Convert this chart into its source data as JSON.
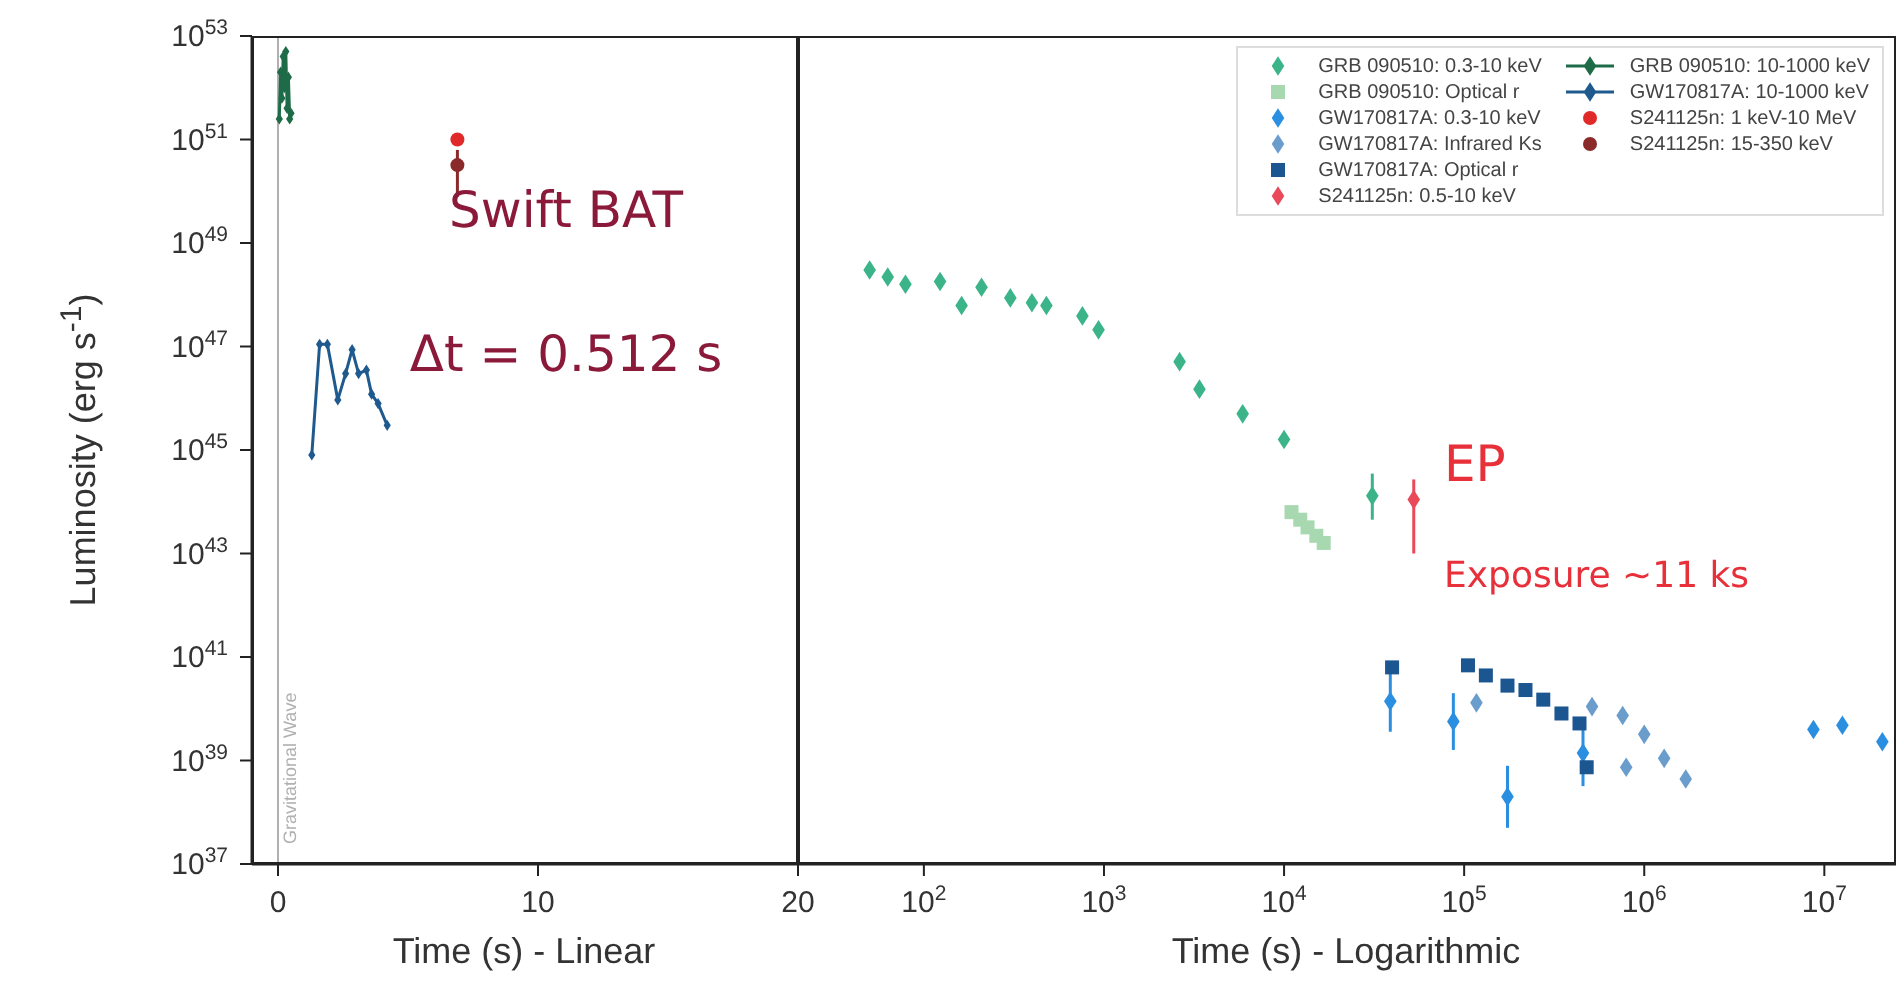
{
  "chart_data": [
    {
      "type": "scatter",
      "ylabel": "Luminosity (erg s$^{-1}$)",
      "xlabel": "Time (s) - Linear",
      "log": "y",
      "xlim": [
        -1,
        20
      ],
      "xticks": [
        0,
        10,
        20
      ],
      "ylim": [
        1e+37,
        1e+53
      ],
      "yticks": [
        {
          "value": 1e+37,
          "label": "10$^{37}$"
        },
        {
          "value": 1e+39,
          "label": "10$^{39}$"
        },
        {
          "value": 1e+41,
          "label": "10$^{41}$"
        },
        {
          "value": 1e+43,
          "label": "10$^{43}$"
        },
        {
          "value": 1e+45,
          "label": "10$^{45}$"
        },
        {
          "value": 1e+47,
          "label": "10$^{47}$"
        },
        {
          "value": 1e+49,
          "label": "10$^{49}$"
        },
        {
          "value": 1e+51,
          "label": "10$^{51}$"
        },
        {
          "value": 1e+53,
          "label": "10$^{53}$"
        }
      ],
      "ref_lines": [
        {
          "axis": "x",
          "value": 0,
          "label": "Gravitational Wave",
          "color": "#b0b0b0"
        }
      ],
      "annotations": [
        "Swift BAT",
        "Δt = 0.512 s"
      ],
      "legend": "right",
      "series": [
        {
          "name": "GRB 090510: 10-1000 keV",
          "type": "line",
          "marker": "diamond",
          "color": "#1e6b48",
          "x": [
            0.05,
            0.1,
            0.15,
            0.2,
            0.25,
            0.3,
            0.35,
            0.4,
            0.45,
            0.5
          ],
          "values": [
            2.5e+51,
            2e+52,
            6.3e+51,
            4e+52,
            1e+52,
            5e+52,
            4e+51,
            1.6e+52,
            2.5e+51,
            3.2e+51
          ]
        },
        {
          "name": "GW170817A: 10-1000 keV",
          "type": "line",
          "marker": "diamond",
          "color": "#1f5a8f",
          "x": [
            1.3,
            1.6,
            1.9,
            2.3,
            2.6,
            2.85,
            3.1,
            3.4,
            3.6,
            3.85,
            4.2
          ],
          "values": [
            8e+44,
            1.1e+47,
            1.1e+47,
            9.3e+45,
            3e+46,
            8.7e+46,
            3e+46,
            3.5e+46,
            1.2e+46,
            7.9e+45,
            3e+45
          ]
        },
        {
          "name": "S241125n: 1 keV-10 MeV",
          "marker": "circle",
          "color": "#e02a2a",
          "x": [
            6.9
          ],
          "values": [
            1e+51
          ]
        },
        {
          "name": "S241125n: 15-350 keV",
          "marker": "circle",
          "color": "#8a2a2a",
          "x": [
            6.9
          ],
          "values": [
            3.2e+50
          ],
          "errors": [
            [
              7.9e+49,
              6.3e+50
            ]
          ]
        }
      ]
    },
    {
      "type": "scatter",
      "xlabel": "Time (s) - Logarithmic",
      "log": "xy",
      "tick_labels": "x",
      "xlim": [
        20,
        25000000.0
      ],
      "ylim": [
        1e+37,
        1e+53
      ],
      "xticks": [
        {
          "value": 100,
          "label": "10$^{2}$"
        },
        {
          "value": 1000,
          "label": "10$^{3}$"
        },
        {
          "value": 10000,
          "label": "10$^{4}$"
        },
        {
          "value": 100000,
          "label": "10$^{5}$"
        },
        {
          "value": 1000000,
          "label": "10$^{6}$"
        },
        {
          "value": 10000000,
          "label": "10$^{7}$"
        }
      ],
      "legend": "top right",
      "annotations": [
        "EP",
        "Exposure ~11 ks"
      ],
      "series": [
        {
          "name": "GRB 090510: 0.3-10 keV",
          "marker": "diamond",
          "color": "#3cb48a",
          "x": [
            50,
            63,
            79,
            123,
            162,
            209,
            302,
            398,
            479,
            759,
            933,
            2630,
            3390,
            5890,
            10000,
            30900
          ],
          "values": [
            3e+48,
            2.2e+48,
            1.6e+48,
            1.8e+48,
            6.2e+47,
            1.4e+48,
            8.7e+47,
            7e+47,
            6.2e+47,
            3.9e+47,
            2.1e+47,
            5.1e+46,
            1.5e+46,
            5e+45,
            1.6e+45,
            1.3e+44
          ],
          "errors": [
            null,
            null,
            null,
            null,
            null,
            null,
            null,
            null,
            null,
            null,
            null,
            null,
            null,
            null,
            null,
            [
              4.5e+43,
              3.5e+44
            ]
          ]
        },
        {
          "name": "GRB 090510: Optical r",
          "marker": "square",
          "color": "#a8d8b0",
          "x": [
            11000,
            12300,
            13500,
            15100,
            16600
          ],
          "values": [
            6.3e+43,
            4.5e+43,
            3.2e+43,
            2.2e+43,
            1.6e+43
          ]
        },
        {
          "name": "GW170817A: 0.3-10 keV",
          "marker": "diamond",
          "color": "#2a8fe0",
          "x": [
            38900,
            87100,
            174000,
            457000,
            8700000.0,
            12600000.0,
            21000000.0
          ],
          "values": [
            1.4e+40,
            5.7e+39,
            2e+38,
            1.4e+39,
            3.98e+39,
            4.8e+39,
            2.3e+39
          ],
          "errors": [
            [
              3.6e+39,
              5.8e+40
            ],
            [
              1.6e+39,
              2e+40
            ],
            [
              5e+37,
              7.9e+38
            ],
            [
              3.2e+38,
              6.3e+39
            ],
            null,
            null,
            null
          ]
        },
        {
          "name": "GW170817A: Infrared Ks",
          "marker": "diamond",
          "color": "#6a9dcc",
          "x": [
            117000,
            513000,
            759000,
            794000,
            1000000.0,
            1290000.0,
            1700000.0
          ],
          "values": [
            1.3e+40,
            1.1e+40,
            7.4e+39,
            7.4e+38,
            3.2e+39,
            1.1e+39,
            4.4e+38
          ]
        },
        {
          "name": "GW170817A: Optical r",
          "marker": "square",
          "color": "#1b5690",
          "x": [
            39800,
            105000,
            132000,
            174000,
            219000,
            275000,
            347000,
            437000,
            479000
          ],
          "values": [
            6.3e+40,
            6.9e+40,
            4.4e+40,
            2.8e+40,
            2.3e+40,
            1.5e+40,
            8.1e+39,
            5.2e+39,
            7.4e+38
          ]
        },
        {
          "name": "S241125n: 0.5-10 keV",
          "marker": "diamond",
          "color": "#e84a5a",
          "x": [
            52500
          ],
          "values": [
            1.1e+44
          ],
          "errors": [
            [
              1e+43,
              2.7e+44
            ]
          ]
        }
      ]
    }
  ]
}
